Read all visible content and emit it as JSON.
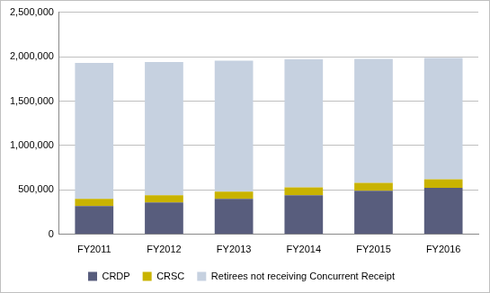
{
  "chart_data": {
    "type": "bar",
    "stacked": true,
    "grid": true,
    "legend": "bottom",
    "categories": [
      "FY2011",
      "FY2012",
      "FY2013",
      "FY2014",
      "FY2015",
      "FY2016"
    ],
    "series": [
      {
        "name": "CRDP",
        "color": "#585d7d",
        "values": [
          320000,
          360000,
          400000,
          440000,
          490000,
          525000
        ]
      },
      {
        "name": "CRSC",
        "color": "#c9b300",
        "values": [
          80000,
          80000,
          80000,
          90000,
          90000,
          95000
        ]
      },
      {
        "name": "Retirees not receiving Concurrent Receipt",
        "color": "#c6d1e0",
        "values": [
          1530000,
          1500000,
          1475000,
          1440000,
          1395000,
          1365000
        ]
      }
    ],
    "ylim": [
      0,
      2500000
    ],
    "yticks": [
      0,
      {
        "value": 500000,
        "label": "500,000"
      },
      {
        "value": 1000000,
        "label": "1,000,000"
      },
      {
        "value": 1500000,
        "label": "1,500,000"
      },
      {
        "value": 2000000,
        "label": "2,000,000"
      },
      {
        "value": 2500000,
        "label": "2,500,000"
      }
    ]
  }
}
